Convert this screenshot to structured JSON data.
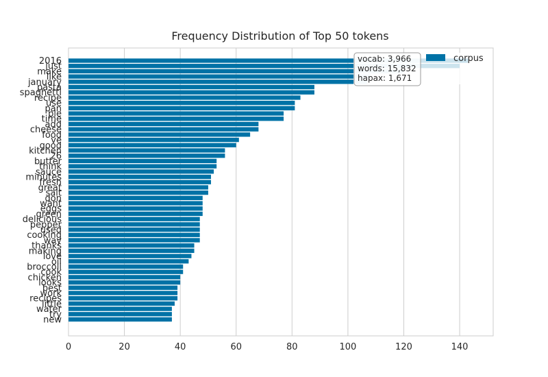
{
  "chart_data": {
    "type": "bar",
    "orientation": "horizontal",
    "title": "Frequency Distribution of Top 50 tokens",
    "xlabel": "",
    "ylabel": "",
    "xlim": [
      0,
      152
    ],
    "x_ticks": [
      0,
      20,
      40,
      60,
      80,
      100,
      120,
      140
    ],
    "grid": true,
    "legend_position": "top-right",
    "bar_color": "#0072a6",
    "categories": [
      "2016",
      "just",
      "make",
      "like",
      "january",
      "pasta",
      "spaghetti",
      "recipe",
      "use",
      "pan",
      "ple",
      "time",
      "add",
      "cheese",
      "food",
      "ve",
      "good",
      "kitchen",
      "26",
      "butter",
      "think",
      "sauce",
      "minutes",
      "fresh",
      "great",
      "salt",
      "don",
      "want",
      "eggs",
      "green",
      "delicious",
      "pepper",
      "used",
      "cooking",
      "way",
      "thanks",
      "making",
      "love",
      "oil",
      "broccoli",
      "cook",
      "chicken",
      "looks",
      "best",
      "work",
      "recipes",
      "little",
      "water",
      "try",
      "new"
    ],
    "series": [
      {
        "name": "corpus",
        "values": [
          143,
          140,
          120,
          108,
          107,
          88,
          88,
          83,
          81,
          81,
          77,
          77,
          68,
          68,
          65,
          61,
          60,
          56,
          56,
          53,
          53,
          52,
          51,
          51,
          50,
          50,
          48,
          48,
          48,
          48,
          47,
          47,
          47,
          47,
          47,
          45,
          45,
          44,
          43,
          41,
          41,
          40,
          40,
          39,
          39,
          39,
          38,
          37,
          37,
          37
        ]
      }
    ],
    "stats": {
      "vocab": "vocab: 3,966",
      "words": "words: 15,832",
      "hapax": "hapax: 1,671"
    }
  }
}
